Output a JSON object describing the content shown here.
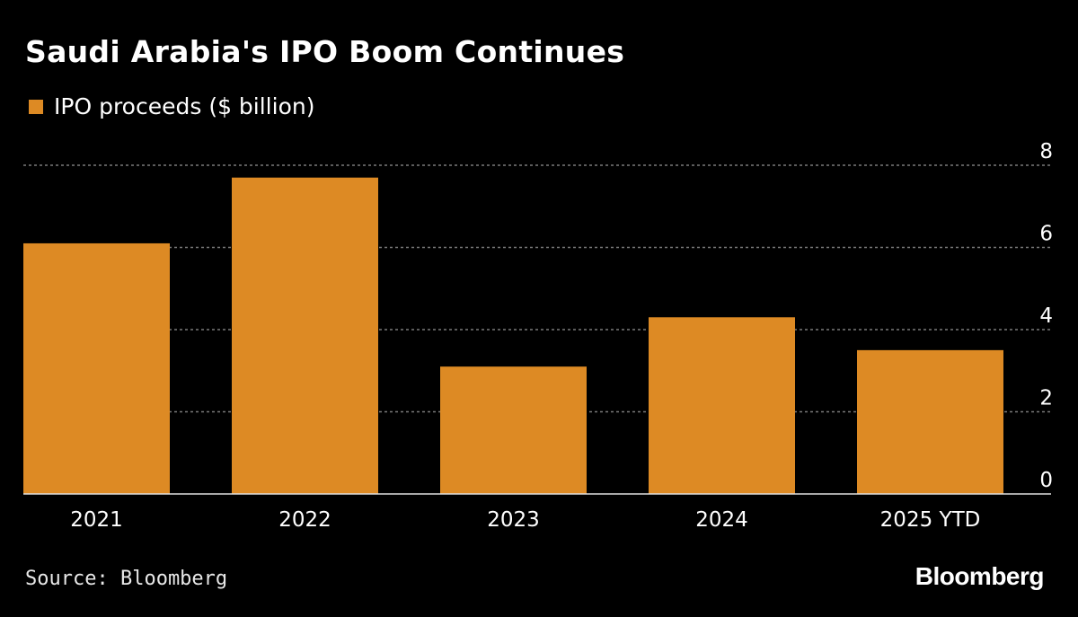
{
  "title": "Saudi Arabia's IPO Boom Continues",
  "source": "Source: Bloomberg",
  "logo": "Bloomberg",
  "colors": {
    "background": "#000000",
    "bar": "#dd8a24",
    "grid": "#7a7a7a",
    "text": "#ffffff"
  },
  "chart_data": {
    "type": "bar",
    "categories": [
      "2021",
      "2022",
      "2023",
      "2024",
      "2025 YTD"
    ],
    "series": [
      {
        "name": "IPO proceeds ($ billion)",
        "values": [
          6.1,
          7.7,
          3.1,
          4.3,
          3.5
        ]
      }
    ],
    "ylim": [
      0,
      8
    ],
    "yticks": [
      0,
      2,
      4,
      6,
      8
    ],
    "y_axis_side": "right",
    "grid": true,
    "legend_placement": "top-left"
  }
}
